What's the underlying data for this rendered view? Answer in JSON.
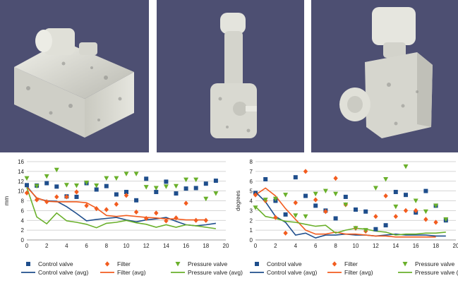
{
  "images": [
    {
      "name": "3d-render-1"
    },
    {
      "name": "3d-render-2"
    },
    {
      "name": "3d-render-3"
    }
  ],
  "colors": {
    "render_background": "#4d4f72",
    "object": "#d9d9d2",
    "control_valve": "#1f4e8c",
    "filter": "#f25c1f",
    "pressure_valve": "#6ab02b",
    "grid": "#c8c8c8"
  },
  "chart_data": [
    {
      "type": "scatter",
      "title": "",
      "xlabel": "",
      "ylabel": "mm",
      "xlim": [
        0,
        20
      ],
      "ylim": [
        0,
        16
      ],
      "xticks": [
        "0",
        "2",
        "4",
        "6",
        "8",
        "10",
        "12",
        "14",
        "16",
        "18",
        "20"
      ],
      "yticks": [
        "0",
        "2",
        "4",
        "6",
        "8",
        "10",
        "12",
        "14",
        "16"
      ],
      "grid": "horizontal",
      "legend_position": "bottom",
      "series": [
        {
          "name": "Control valve",
          "kind": "markers",
          "marker": "square",
          "x": [
            0,
            1,
            2,
            3,
            4,
            5,
            6,
            7,
            8,
            9,
            10,
            11,
            12,
            13,
            14,
            15,
            16,
            17,
            18,
            19
          ],
          "y": [
            11.2,
            11.1,
            11.6,
            10.9,
            8.9,
            8.8,
            11.6,
            10.3,
            11.0,
            9.3,
            9.8,
            8.1,
            12.5,
            9.8,
            11.9,
            9.5,
            10.5,
            10.6,
            11.5,
            12.1
          ]
        },
        {
          "name": "Filter",
          "kind": "markers",
          "marker": "diamond",
          "x": [
            0,
            1,
            2,
            3,
            4,
            5,
            6,
            7,
            8,
            9,
            10,
            11,
            12,
            13,
            14,
            15,
            16,
            17,
            18,
            19
          ],
          "y": [
            9.6,
            8.2,
            7.8,
            8.8,
            8.8,
            9.8,
            7.0,
            6.4,
            6.2,
            7.3,
            9.1,
            5.7,
            4.4,
            5.5,
            3.9,
            4.5,
            7.5,
            4.0,
            4.0,
            null
          ]
        },
        {
          "name": "Pressure valve",
          "kind": "markers",
          "marker": "triangle-down",
          "x": [
            0,
            1,
            2,
            3,
            4,
            5,
            6,
            7,
            8,
            9,
            10,
            11,
            12,
            13,
            14,
            15,
            16,
            17,
            18,
            19
          ],
          "y": [
            12.6,
            11.0,
            13.0,
            14.3,
            11.2,
            11.1,
            11.7,
            11.1,
            12.6,
            12.6,
            13.5,
            13.5,
            10.8,
            10.6,
            10.9,
            11.0,
            12.3,
            12.3,
            8.4,
            9.5
          ]
        },
        {
          "name": "Control valve (avg)",
          "kind": "line",
          "x": [
            0,
            1,
            2,
            3,
            4,
            5,
            6,
            7,
            8,
            9,
            10,
            11,
            12,
            13,
            14,
            15,
            16,
            17,
            18,
            19
          ],
          "y": [
            11.0,
            8.5,
            8.0,
            7.9,
            6.8,
            5.4,
            3.9,
            4.2,
            4.4,
            4.6,
            4.1,
            3.7,
            4.1,
            4.3,
            4.6,
            3.8,
            3.1,
            2.9,
            3.1,
            3.4
          ]
        },
        {
          "name": "Filter (avg)",
          "kind": "line",
          "x": [
            0,
            1,
            2,
            3,
            4,
            5,
            6,
            7,
            8,
            9,
            10,
            11,
            12,
            13,
            14,
            15,
            16,
            17,
            18,
            19
          ],
          "y": [
            10.8,
            8.6,
            7.9,
            7.8,
            7.8,
            7.8,
            7.6,
            6.5,
            5.0,
            4.8,
            5.0,
            4.8,
            4.6,
            4.5,
            4.3,
            4.3,
            4.1,
            4.1,
            4.1,
            null
          ]
        },
        {
          "name": "Pressure valve (avg)",
          "kind": "line",
          "x": [
            0,
            1,
            2,
            3,
            4,
            5,
            6,
            7,
            8,
            9,
            10,
            11,
            12,
            13,
            14,
            15,
            16,
            17,
            18,
            19
          ],
          "y": [
            10.7,
            4.7,
            3.3,
            5.5,
            3.9,
            3.6,
            3.2,
            2.5,
            3.4,
            3.6,
            4.0,
            3.5,
            3.2,
            2.6,
            3.1,
            2.6,
            3.1,
            2.9,
            2.6,
            2.3
          ]
        }
      ]
    },
    {
      "type": "scatter",
      "title": "",
      "xlabel": "",
      "ylabel": "degrees",
      "xlim": [
        0,
        20
      ],
      "ylim": [
        0,
        8
      ],
      "xticks": [
        "0",
        "2",
        "4",
        "6",
        "8",
        "10",
        "12",
        "14",
        "16",
        "18",
        "20"
      ],
      "yticks": [
        "0",
        "1",
        "2",
        "3",
        "4",
        "5",
        "6",
        "7",
        "8"
      ],
      "grid": "horizontal",
      "legend_position": "bottom",
      "series": [
        {
          "name": "Control valve",
          "kind": "markers",
          "marker": "square",
          "x": [
            0,
            1,
            2,
            3,
            4,
            5,
            6,
            7,
            8,
            9,
            10,
            11,
            12,
            13,
            14,
            15,
            16,
            17,
            18,
            19
          ],
          "y": [
            4.8,
            6.2,
            4.0,
            2.6,
            6.4,
            4.5,
            3.5,
            3.0,
            2.2,
            4.4,
            3.1,
            2.9,
            1.1,
            1.5,
            4.9,
            4.6,
            2.8,
            5.0,
            3.5,
            2.0
          ]
        },
        {
          "name": "Filter",
          "kind": "markers",
          "marker": "diamond",
          "x": [
            0,
            1,
            2,
            3,
            4,
            5,
            6,
            7,
            8,
            9,
            10,
            11,
            12,
            13,
            14,
            15,
            16,
            17,
            18,
            19
          ],
          "y": [
            4.6,
            4.0,
            2.3,
            0.7,
            3.8,
            7.0,
            4.1,
            2.9,
            6.3,
            3.6,
            1.2,
            0.9,
            2.4,
            4.5,
            2.4,
            3.0,
            3.0,
            2.1,
            1.8,
            null
          ]
        },
        {
          "name": "Pressure valve",
          "kind": "markers",
          "marker": "triangle-down",
          "x": [
            0,
            1,
            2,
            3,
            4,
            5,
            6,
            7,
            8,
            9,
            10,
            11,
            12,
            13,
            14,
            15,
            16,
            17,
            18,
            19
          ],
          "y": [
            3.3,
            4.1,
            4.2,
            4.6,
            2.5,
            2.4,
            4.7,
            5.0,
            4.7,
            3.6,
            1.2,
            1.0,
            5.3,
            6.2,
            3.4,
            7.5,
            4.0,
            2.9,
            3.5,
            2.1
          ]
        },
        {
          "name": "Control valve (avg)",
          "kind": "line",
          "x": [
            0,
            1,
            2,
            3,
            4,
            5,
            6,
            7,
            8,
            9,
            10,
            11,
            12,
            13,
            14,
            15,
            16,
            17,
            18,
            19
          ],
          "y": [
            4.9,
            3.9,
            2.4,
            1.8,
            0.5,
            0.7,
            0.2,
            0.5,
            0.5,
            0.6,
            0.5,
            0.5,
            0.4,
            0.5,
            0.6,
            0.5,
            0.5,
            0.5,
            0.4,
            0.4
          ]
        },
        {
          "name": "Filter (avg)",
          "kind": "line",
          "x": [
            0,
            1,
            2,
            3,
            4,
            5,
            6,
            7,
            8,
            9,
            10,
            11,
            12,
            13,
            14,
            15,
            16,
            17,
            18,
            19
          ],
          "y": [
            4.6,
            5.3,
            4.5,
            3.2,
            2.1,
            1.0,
            0.6,
            0.6,
            0.8,
            0.6,
            0.6,
            0.5,
            0.4,
            0.4,
            0.3,
            0.3,
            0.3,
            0.3,
            0.3,
            null
          ]
        },
        {
          "name": "Pressure valve (avg)",
          "kind": "line",
          "x": [
            0,
            1,
            2,
            3,
            4,
            5,
            6,
            7,
            8,
            9,
            10,
            11,
            12,
            13,
            14,
            15,
            16,
            17,
            18,
            19
          ],
          "y": [
            3.4,
            2.4,
            2.2,
            1.9,
            1.8,
            1.6,
            1.4,
            1.5,
            0.7,
            1.0,
            1.2,
            1.1,
            0.9,
            0.8,
            0.5,
            0.6,
            0.6,
            0.7,
            0.7,
            0.8
          ]
        }
      ]
    }
  ]
}
